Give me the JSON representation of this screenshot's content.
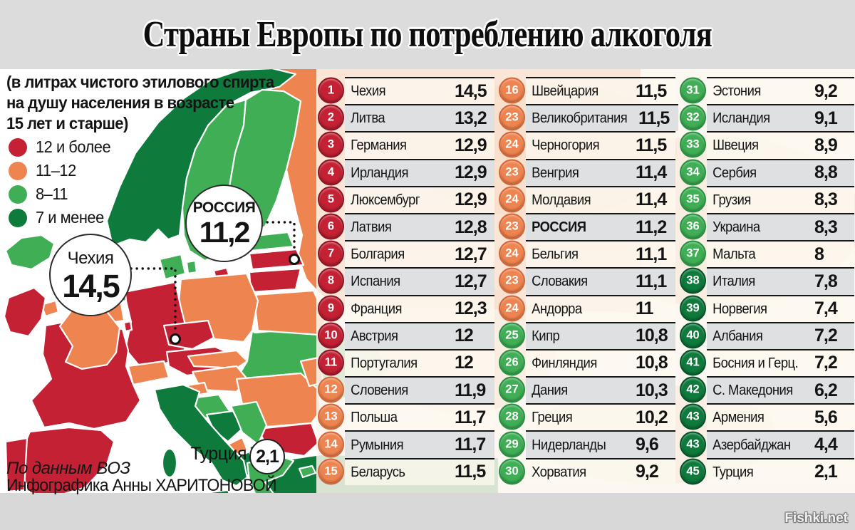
{
  "title": "Страны Европы по потреблению алкоголя",
  "subtitle_lines": [
    "(в литрах чистого этилового спирта",
    "на душу населения в возрасте",
    "15 лет и старше)"
  ],
  "colors": {
    "red": "#c42134",
    "orange": "#ee8450",
    "green": "#3fae55",
    "darkgreen": "#0e7a3b"
  },
  "badge_rings": {
    "red": "#8c1424",
    "orange": "#d3673a",
    "green": "#2a8f42",
    "darkgreen": "#07512a"
  },
  "legend": [
    {
      "bucket": "red",
      "label": "12 и более"
    },
    {
      "bucket": "orange",
      "label": "11–12"
    },
    {
      "bucket": "green",
      "label": "8–11"
    },
    {
      "bucket": "darkgreen",
      "label": "7 и менее"
    }
  ],
  "map": {
    "callouts": {
      "czech": {
        "name": "Чехия",
        "value": "14,5"
      },
      "russia": {
        "name": "РОССИЯ",
        "value": "11,2"
      },
      "turkey": {
        "name": "Турция",
        "value": "2,1"
      }
    },
    "countries": [
      {
        "id": "iceland",
        "bucket": "green"
      },
      {
        "id": "ireland",
        "bucket": "red"
      },
      {
        "id": "uk",
        "bucket": "orange"
      },
      {
        "id": "n_ireland",
        "bucket": "orange"
      },
      {
        "id": "norway",
        "bucket": "darkgreen"
      },
      {
        "id": "sweden",
        "bucket": "green"
      },
      {
        "id": "finland",
        "bucket": "green"
      },
      {
        "id": "russia",
        "bucket": "orange"
      },
      {
        "id": "estonia",
        "bucket": "green"
      },
      {
        "id": "latvia",
        "bucket": "red"
      },
      {
        "id": "lithuania",
        "bucket": "red"
      },
      {
        "id": "kaliningrad",
        "bucket": "red"
      },
      {
        "id": "belarus",
        "bucket": "orange"
      },
      {
        "id": "poland",
        "bucket": "orange"
      },
      {
        "id": "germany",
        "bucket": "red"
      },
      {
        "id": "netherlands",
        "bucket": "green"
      },
      {
        "id": "belgium",
        "bucket": "orange"
      },
      {
        "id": "luxembourg",
        "bucket": "red"
      },
      {
        "id": "czech",
        "bucket": "red"
      },
      {
        "id": "austria",
        "bucket": "red"
      },
      {
        "id": "switzerland",
        "bucket": "orange"
      },
      {
        "id": "france",
        "bucket": "red"
      },
      {
        "id": "spain",
        "bucket": "red"
      },
      {
        "id": "portugal",
        "bucket": "red"
      },
      {
        "id": "italy",
        "bucket": "darkgreen"
      },
      {
        "id": "sardinia",
        "bucket": "darkgreen"
      },
      {
        "id": "sicily",
        "bucket": "darkgreen"
      },
      {
        "id": "slovenia",
        "bucket": "orange"
      },
      {
        "id": "croatia",
        "bucket": "green"
      },
      {
        "id": "bosnia",
        "bucket": "darkgreen"
      },
      {
        "id": "serbia",
        "bucket": "green"
      },
      {
        "id": "montenegro",
        "bucket": "orange"
      },
      {
        "id": "albania",
        "bucket": "darkgreen"
      },
      {
        "id": "macedonia",
        "bucket": "darkgreen"
      },
      {
        "id": "greece",
        "bucket": "green"
      },
      {
        "id": "bulgaria",
        "bucket": "red"
      },
      {
        "id": "romania",
        "bucket": "orange"
      },
      {
        "id": "moldova",
        "bucket": "orange"
      },
      {
        "id": "hungary",
        "bucket": "orange"
      },
      {
        "id": "slovakia",
        "bucket": "orange"
      },
      {
        "id": "ukraine",
        "bucket": "green"
      },
      {
        "id": "denmark",
        "bucket": "green"
      },
      {
        "id": "denmark_isl",
        "bucket": "green"
      },
      {
        "id": "turkey",
        "bucket": "darkgreen"
      },
      {
        "id": "cyprus",
        "bucket": "green"
      }
    ]
  },
  "chart_data": {
    "type": "table",
    "title": "Страны Европы по потреблению алкоголя",
    "unit_note": "в литрах чистого этилового спирта на душу населения в возрасте 15 лет и старше",
    "legend_buckets": [
      "12 и более",
      "11–12",
      "8–11",
      "7 и менее"
    ],
    "columns": [
      [
        {
          "rank": "1",
          "name": "Чехия",
          "value": "14,5",
          "bucket": "red"
        },
        {
          "rank": "2",
          "name": "Литва",
          "value": "13,2",
          "bucket": "red"
        },
        {
          "rank": "3",
          "name": "Германия",
          "value": "12,9",
          "bucket": "red"
        },
        {
          "rank": "4",
          "name": "Ирландия",
          "value": "12,9",
          "bucket": "red"
        },
        {
          "rank": "5",
          "name": "Люксембург",
          "value": "12,9",
          "bucket": "red"
        },
        {
          "rank": "6",
          "name": "Латвия",
          "value": "12,8",
          "bucket": "red"
        },
        {
          "rank": "7",
          "name": "Болгария",
          "value": "12,7",
          "bucket": "red"
        },
        {
          "rank": "8",
          "name": "Испания",
          "value": "12,7",
          "bucket": "red"
        },
        {
          "rank": "9",
          "name": "Франция",
          "value": "12,3",
          "bucket": "red"
        },
        {
          "rank": "10",
          "name": "Австрия",
          "value": "12",
          "bucket": "red"
        },
        {
          "rank": "11",
          "name": "Португалия",
          "value": "12",
          "bucket": "red"
        },
        {
          "rank": "12",
          "name": "Словения",
          "value": "11,9",
          "bucket": "orange"
        },
        {
          "rank": "13",
          "name": "Польша",
          "value": "11,7",
          "bucket": "orange"
        },
        {
          "rank": "14",
          "name": "Румыния",
          "value": "11,7",
          "bucket": "orange"
        },
        {
          "rank": "15",
          "name": "Беларусь",
          "value": "11,5",
          "bucket": "orange"
        }
      ],
      [
        {
          "rank": "16",
          "name": "Швейцария",
          "value": "11,5",
          "bucket": "orange"
        },
        {
          "rank": "23",
          "name": "Великобритания",
          "value": "11,5",
          "bucket": "orange"
        },
        {
          "rank": "24",
          "name": "Черногория",
          "value": "11,5",
          "bucket": "orange"
        },
        {
          "rank": "23",
          "name": "Венгрия",
          "value": "11,4",
          "bucket": "orange"
        },
        {
          "rank": "24",
          "name": "Молдавия",
          "value": "11,4",
          "bucket": "orange"
        },
        {
          "rank": "23",
          "name": "РОССИЯ",
          "value": "11,2",
          "bucket": "orange",
          "bold": true
        },
        {
          "rank": "24",
          "name": "Бельгия",
          "value": "11,1",
          "bucket": "orange"
        },
        {
          "rank": "23",
          "name": "Словакия",
          "value": "11,1",
          "bucket": "orange"
        },
        {
          "rank": "24",
          "name": "Андорра",
          "value": "11",
          "bucket": "orange"
        },
        {
          "rank": "25",
          "name": "Кипр",
          "value": "10,8",
          "bucket": "green"
        },
        {
          "rank": "26",
          "name": "Финляндия",
          "value": "10,8",
          "bucket": "green"
        },
        {
          "rank": "27",
          "name": "Дания",
          "value": "10,3",
          "bucket": "green"
        },
        {
          "rank": "28",
          "name": "Греция",
          "value": "10,2",
          "bucket": "green"
        },
        {
          "rank": "29",
          "name": "Нидерланды",
          "value": "9,6",
          "bucket": "green"
        },
        {
          "rank": "30",
          "name": "Хорватия",
          "value": "9,2",
          "bucket": "green"
        }
      ],
      [
        {
          "rank": "31",
          "name": "Эстония",
          "value": "9,2",
          "bucket": "green"
        },
        {
          "rank": "32",
          "name": "Исландия",
          "value": "9,1",
          "bucket": "green"
        },
        {
          "rank": "33",
          "name": "Швеция",
          "value": "8,9",
          "bucket": "green"
        },
        {
          "rank": "34",
          "name": "Сербия",
          "value": "8,8",
          "bucket": "green"
        },
        {
          "rank": "35",
          "name": "Грузия",
          "value": "8,3",
          "bucket": "green"
        },
        {
          "rank": "36",
          "name": "Украина",
          "value": "8,3",
          "bucket": "green"
        },
        {
          "rank": "37",
          "name": "Мальта",
          "value": "8",
          "bucket": "green"
        },
        {
          "rank": "38",
          "name": "Италия",
          "value": "7,8",
          "bucket": "darkgreen"
        },
        {
          "rank": "39",
          "name": "Норвегия",
          "value": "7,4",
          "bucket": "darkgreen"
        },
        {
          "rank": "40",
          "name": "Албания",
          "value": "7,2",
          "bucket": "darkgreen"
        },
        {
          "rank": "41",
          "name": "Босния и Герц.",
          "value": "7,2",
          "bucket": "darkgreen"
        },
        {
          "rank": "42",
          "name": "С. Македония",
          "value": "6,2",
          "bucket": "darkgreen"
        },
        {
          "rank": "43",
          "name": "Армения",
          "value": "5,6",
          "bucket": "darkgreen"
        },
        {
          "rank": "43",
          "name": "Азербайджан",
          "value": "4,4",
          "bucket": "darkgreen"
        },
        {
          "rank": "45",
          "name": "Турция",
          "value": "2,1",
          "bucket": "darkgreen"
        }
      ]
    ]
  },
  "footer": {
    "source": "По данным ВОЗ",
    "credit": "Инфографика Анны ХАРИТОНОВОЙ",
    "watermark": "Fishki.net"
  }
}
